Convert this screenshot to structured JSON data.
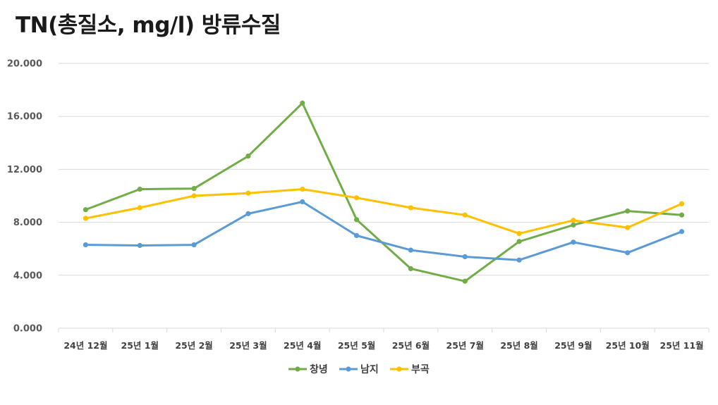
{
  "chart_data": {
    "type": "line",
    "title": "TN(총질소, mg/l) 방류수질",
    "xlabel": "",
    "ylabel": "",
    "ylim": [
      0,
      20
    ],
    "yticks": [
      "0.000",
      "4.000",
      "8.000",
      "12.000",
      "16.000",
      "20.000"
    ],
    "ytick_values": [
      0,
      4,
      8,
      12,
      16,
      20
    ],
    "grid": true,
    "legend_position": "bottom",
    "categories": [
      "24년 12월",
      "25년 1월",
      "25년 2월",
      "25년 3월",
      "25년 4월",
      "25년 5월",
      "25년 6월",
      "25년 7월",
      "25년 8월",
      "25년 9월",
      "25년 10월",
      "25년 11월"
    ],
    "series": [
      {
        "name": "창녕",
        "color": "#70ad47",
        "values": [
          8.95,
          10.5,
          10.55,
          13.0,
          17.0,
          8.2,
          4.5,
          3.55,
          6.55,
          7.8,
          8.85,
          8.55
        ]
      },
      {
        "name": "남지",
        "color": "#5b9bd5",
        "values": [
          6.3,
          6.25,
          6.3,
          8.65,
          9.55,
          7.0,
          5.9,
          5.4,
          5.15,
          6.5,
          5.7,
          7.3
        ]
      },
      {
        "name": "부곡",
        "color": "#ffc000",
        "values": [
          8.3,
          9.1,
          10.0,
          10.2,
          10.5,
          9.85,
          9.1,
          8.55,
          7.15,
          8.15,
          7.6,
          9.4
        ]
      }
    ]
  }
}
